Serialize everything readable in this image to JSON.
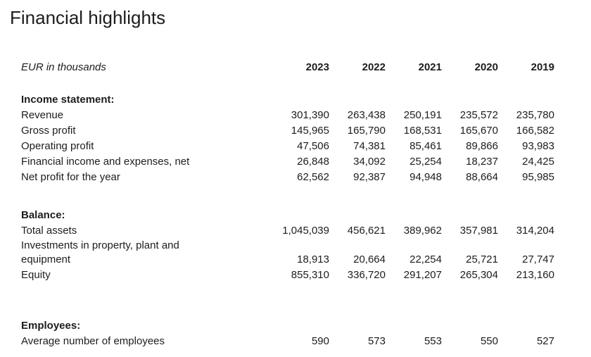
{
  "page": {
    "title": "Financial highlights"
  },
  "table": {
    "unit_label": "EUR in thousands",
    "years": [
      "2023",
      "2022",
      "2021",
      "2020",
      "2019"
    ],
    "sections": [
      {
        "heading": "Income statement:",
        "rows": [
          {
            "label": "Revenue",
            "values": [
              "301,390",
              "263,438",
              "250,191",
              "235,572",
              "235,780"
            ]
          },
          {
            "label": "Gross profit",
            "values": [
              "145,965",
              "165,790",
              "168,531",
              "165,670",
              "166,582"
            ]
          },
          {
            "label": "Operating profit",
            "values": [
              "47,506",
              "74,381",
              "85,461",
              "89,866",
              "93,983"
            ]
          },
          {
            "label": "Financial income and expenses, net",
            "values": [
              "26,848",
              "34,092",
              "25,254",
              "18,237",
              "24,425"
            ]
          },
          {
            "label": "Net profit for the year",
            "values": [
              "62,562",
              "92,387",
              "94,948",
              "88,664",
              "95,985"
            ]
          }
        ]
      },
      {
        "heading": "Balance:",
        "rows": [
          {
            "label": "Total assets",
            "values": [
              "1,045,039",
              "456,621",
              "389,962",
              "357,981",
              "314,204"
            ]
          },
          {
            "label": "Investments in property, plant and equipment",
            "values": [
              "18,913",
              "20,664",
              "22,254",
              "25,721",
              "27,747"
            ]
          },
          {
            "label": "Equity",
            "values": [
              "855,310",
              "336,720",
              "291,207",
              "265,304",
              "213,160"
            ]
          }
        ]
      },
      {
        "heading": "Employees:",
        "rows": [
          {
            "label": "Average number of employees",
            "values": [
              "590",
              "573",
              "553",
              "550",
              "527"
            ]
          }
        ]
      }
    ]
  }
}
